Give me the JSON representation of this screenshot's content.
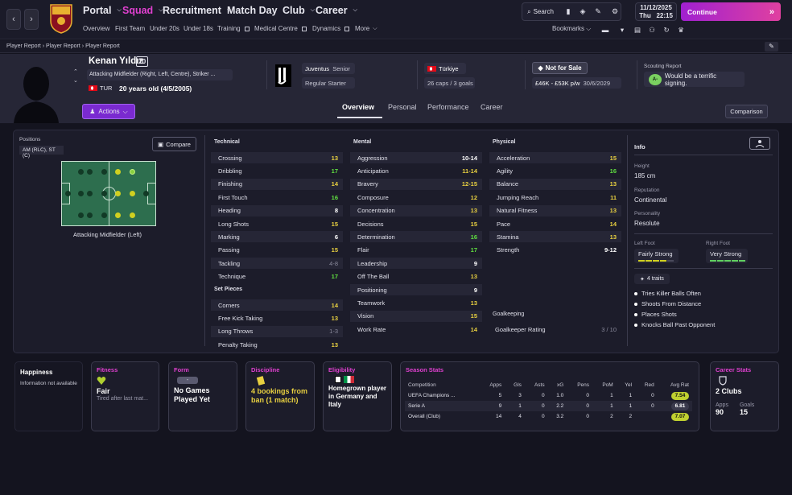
{
  "nav": {
    "main": [
      "Portal",
      "Squad",
      "Recruitment",
      "Match Day",
      "Club",
      "Career"
    ],
    "sub": [
      "Overview",
      "First Team",
      "Under 20s",
      "Under 18s",
      "Training",
      "Medical Centre",
      "Dynamics",
      "More"
    ],
    "search": "Search",
    "date_line1": "11/12/2025",
    "date_day": "Thu",
    "date_time": "22:15",
    "continue": "Continue",
    "bookmarks": "Bookmarks",
    "active_color": "#e040d0"
  },
  "breadcrumb": [
    "Player Report",
    "Player Report",
    "Player Report"
  ],
  "player": {
    "name": "Kenan Yıldız",
    "number": "10",
    "positions_text": "Attacking Midfielder (Right, Left, Centre), Striker ...",
    "nation_code": "TUR",
    "age": "20 years old (4/5/2005)",
    "actions": "Actions",
    "club": "Juventus",
    "squad": "Senior",
    "role": "Regular Starter",
    "nation": "Türkiye",
    "caps": "26 caps / 3 goals",
    "transfer_status": "Not for Sale",
    "wage": "£46K - £53K p/w",
    "contract": "30/6/2029",
    "scouting_title": "Scouting Report",
    "scouting_grade": "A-",
    "scouting_text": "Would be a terrific signing."
  },
  "tabs": [
    "Overview",
    "Personal",
    "Performance",
    "Career"
  ],
  "comparison": "Comparison",
  "positions": {
    "title": "Positions",
    "tag": "AM (RLC), ST (C)",
    "compare": "Compare",
    "caption": "Attacking Midfielder (Left)"
  },
  "technical": {
    "title": "Technical",
    "items": [
      {
        "name": "Crossing",
        "value": "13",
        "c": "c-yellow"
      },
      {
        "name": "Dribbling",
        "value": "17",
        "c": "c-green"
      },
      {
        "name": "Finishing",
        "value": "14",
        "c": "c-yellow"
      },
      {
        "name": "First Touch",
        "value": "16",
        "c": "c-green"
      },
      {
        "name": "Heading",
        "value": "8",
        "c": "c-white"
      },
      {
        "name": "Long Shots",
        "value": "15",
        "c": "c-yellow"
      },
      {
        "name": "Marking",
        "value": "6",
        "c": "c-white"
      },
      {
        "name": "Passing",
        "value": "15",
        "c": "c-yellow"
      },
      {
        "name": "Tackling",
        "value": "4-8",
        "c": "c-gray"
      },
      {
        "name": "Technique",
        "value": "17",
        "c": "c-green"
      }
    ]
  },
  "set_pieces": {
    "title": "Set Pieces",
    "items": [
      {
        "name": "Corners",
        "value": "14",
        "c": "c-yellow"
      },
      {
        "name": "Free Kick Taking",
        "value": "13",
        "c": "c-yellow"
      },
      {
        "name": "Long Throws",
        "value": "1-3",
        "c": "c-gray"
      },
      {
        "name": "Penalty Taking",
        "value": "13",
        "c": "c-yellow"
      }
    ]
  },
  "mental": {
    "title": "Mental",
    "items": [
      {
        "name": "Aggression",
        "value": "10-14",
        "c": "c-white"
      },
      {
        "name": "Anticipation",
        "value": "11-14",
        "c": "c-yellow"
      },
      {
        "name": "Bravery",
        "value": "12-15",
        "c": "c-yellow"
      },
      {
        "name": "Composure",
        "value": "12",
        "c": "c-yellow"
      },
      {
        "name": "Concentration",
        "value": "13",
        "c": "c-yellow"
      },
      {
        "name": "Decisions",
        "value": "15",
        "c": "c-yellow"
      },
      {
        "name": "Determination",
        "value": "16",
        "c": "c-green"
      },
      {
        "name": "Flair",
        "value": "17",
        "c": "c-green"
      },
      {
        "name": "Leadership",
        "value": "9",
        "c": "c-white"
      },
      {
        "name": "Off The Ball",
        "value": "13",
        "c": "c-yellow"
      },
      {
        "name": "Positioning",
        "value": "9",
        "c": "c-white"
      },
      {
        "name": "Teamwork",
        "value": "13",
        "c": "c-yellow"
      },
      {
        "name": "Vision",
        "value": "15",
        "c": "c-yellow"
      },
      {
        "name": "Work Rate",
        "value": "14",
        "c": "c-yellow"
      }
    ]
  },
  "physical": {
    "title": "Physical",
    "items": [
      {
        "name": "Acceleration",
        "value": "15",
        "c": "c-yellow"
      },
      {
        "name": "Agility",
        "value": "16",
        "c": "c-green"
      },
      {
        "name": "Balance",
        "value": "13",
        "c": "c-yellow"
      },
      {
        "name": "Jumping Reach",
        "value": "11",
        "c": "c-yellow"
      },
      {
        "name": "Natural Fitness",
        "value": "13",
        "c": "c-yellow"
      },
      {
        "name": "Pace",
        "value": "14",
        "c": "c-yellow"
      },
      {
        "name": "Stamina",
        "value": "13",
        "c": "c-yellow"
      },
      {
        "name": "Strength",
        "value": "9-12",
        "c": "c-white"
      }
    ]
  },
  "goalkeeping": {
    "title": "Goalkeeping",
    "name": "Goalkeeper Rating",
    "value": "3 / 10"
  },
  "info": {
    "title": "Info",
    "height_label": "Height",
    "height": "185 cm",
    "reputation_label": "Reputation",
    "reputation": "Continental",
    "personality_label": "Personality",
    "personality": "Resolute",
    "left_foot_label": "Left Foot",
    "left_foot": "Fairly Strong",
    "right_foot_label": "Right Foot",
    "right_foot": "Very Strong",
    "traits_btn": "4 traits",
    "traits": [
      "Tries Killer Balls Often",
      "Shoots From Distance",
      "Places Shots",
      "Knocks Ball Past Opponent"
    ]
  },
  "cards": {
    "happiness": {
      "title": "Happiness",
      "text": "Information not available"
    },
    "fitness": {
      "title": "Fitness",
      "big": "Fair",
      "sub": "Tired after last mat..."
    },
    "form": {
      "title": "Form",
      "badge": "-",
      "big": "No Games Played Yet"
    },
    "discipline": {
      "title": "Discipline",
      "big": "4 bookings from ban (1 match)"
    },
    "eligibility": {
      "title": "Eligibility",
      "big": "Homegrown player in Germany and Italy"
    },
    "season": {
      "title": "Season Stats",
      "headers": [
        "Competition",
        "Apps",
        "Gls",
        "Asts",
        "xG",
        "Pens",
        "PoM",
        "Yel",
        "Red",
        "Avg Rat"
      ],
      "rows": [
        [
          "UEFA Champions ...",
          "5",
          "3",
          "0",
          "1.0",
          "0",
          "1",
          "1",
          "0",
          "7.54"
        ],
        [
          "Serie A",
          "9",
          "1",
          "0",
          "2.2",
          "0",
          "1",
          "1",
          "0",
          "6.81"
        ],
        [
          "Overall (Club)",
          "14",
          "4",
          "0",
          "3.2",
          "0",
          "2",
          "2",
          "",
          "7.07"
        ]
      ]
    },
    "career": {
      "title": "Career Stats",
      "big": "2 Clubs",
      "apps_label": "Apps",
      "apps": "90",
      "goals_label": "Goals",
      "goals": "15"
    }
  }
}
